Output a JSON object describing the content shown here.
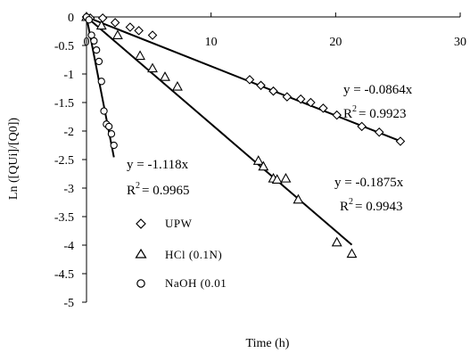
{
  "chart_data": {
    "type": "scatter",
    "xlabel": "Time (h)",
    "ylabel": "Ln ([QUi]/[Q0])",
    "xlim": [
      0,
      30
    ],
    "ylim": [
      -5,
      0
    ],
    "x_ticks": [
      0,
      10,
      20,
      30
    ],
    "y_ticks": [
      0,
      -0.5,
      -1,
      -1.5,
      -2,
      -2.5,
      -3,
      -3.5,
      -4,
      -4.5,
      -5
    ],
    "grid": false,
    "legend_position": "bottom-left",
    "series": [
      {
        "name": "UPW",
        "marker": "diamond",
        "x": [
          0,
          0.3,
          1.3,
          2.3,
          3.5,
          4.2,
          5.3,
          13.1,
          14,
          15,
          16.1,
          17.2,
          18,
          19,
          20.1,
          22.1,
          23.5,
          25.2
        ],
        "y": [
          0,
          -0.02,
          -0.02,
          -0.1,
          -0.18,
          -0.24,
          -0.32,
          -1.1,
          -1.2,
          -1.3,
          -1.4,
          -1.44,
          -1.5,
          -1.6,
          -1.72,
          -1.92,
          -2.02,
          -2.18
        ],
        "fit": {
          "slope": -0.0864,
          "equation": "y = -0.0864x",
          "r2_label": "R",
          "r2_sup": "2",
          "r2_value": "= 0.9923"
        }
      },
      {
        "name": "HCl (0.1N)",
        "marker": "triangle",
        "x": [
          0,
          1.2,
          2.5,
          4.3,
          5.3,
          6.3,
          7.3,
          13.8,
          14.2,
          15,
          15.3,
          16,
          17,
          20.1,
          21.3
        ],
        "y": [
          0,
          -0.15,
          -0.32,
          -0.68,
          -0.9,
          -1.05,
          -1.22,
          -2.52,
          -2.62,
          -2.83,
          -2.85,
          -2.83,
          -3.2,
          -3.95,
          -4.15
        ],
        "fit": {
          "slope": -0.1875,
          "equation": "y = -0.1875x",
          "r2_label": "R",
          "r2_sup": "2",
          "r2_value": "= 0.9943"
        }
      },
      {
        "name": "NaOH (0.01",
        "marker": "circle",
        "x": [
          0,
          0.2,
          0.4,
          0.6,
          0.8,
          1.0,
          1.2,
          1.4,
          1.6,
          1.8,
          2.0,
          2.2
        ],
        "y": [
          0,
          -0.05,
          -0.32,
          -0.42,
          -0.58,
          -0.78,
          -1.13,
          -1.65,
          -1.88,
          -1.92,
          -2.05,
          -2.25
        ],
        "fit": {
          "slope": -1.118,
          "equation": "y = -1.118x",
          "r2_label": "R",
          "r2_sup": "2",
          "r2_value": "= 0.9965"
        }
      }
    ]
  }
}
